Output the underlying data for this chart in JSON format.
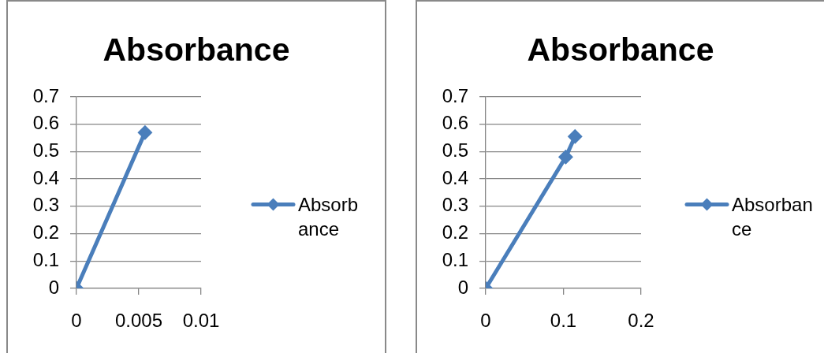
{
  "chart_data": [
    {
      "type": "line",
      "title": "Absorbance",
      "x": [
        0,
        0.0055
      ],
      "series": [
        {
          "name": "Absorbance",
          "color": "#4a7ebb",
          "values": [
            0,
            0.57
          ]
        }
      ],
      "xlim": [
        0,
        0.01
      ],
      "xticks": [
        0,
        0.005,
        0.01
      ],
      "ylim": [
        0,
        0.7
      ],
      "yticks": [
        0,
        0.1,
        0.2,
        0.3,
        0.4,
        0.5,
        0.6,
        0.7
      ],
      "grid": "y",
      "legend": "right",
      "marker": "diamond"
    },
    {
      "type": "line",
      "title": "Absorbance",
      "x": [
        0,
        0.103,
        0.115
      ],
      "series": [
        {
          "name": "Absorbance",
          "color": "#4a7ebb",
          "values": [
            0,
            0.48,
            0.555
          ]
        }
      ],
      "xlim": [
        0,
        0.2
      ],
      "xticks": [
        0,
        0.1,
        0.2
      ],
      "ylim": [
        0,
        0.7
      ],
      "yticks": [
        0,
        0.1,
        0.2,
        0.3,
        0.4,
        0.5,
        0.6,
        0.7
      ],
      "grid": "y",
      "legend": "right",
      "marker": "diamond"
    }
  ]
}
